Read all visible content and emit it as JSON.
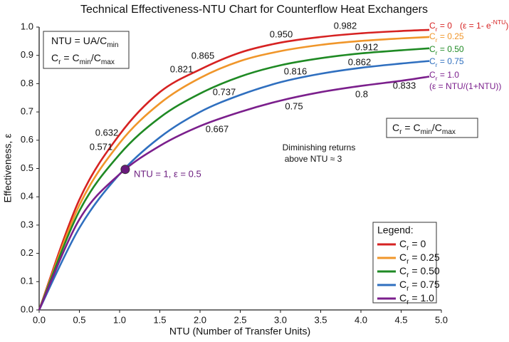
{
  "chart_data": {
    "type": "line",
    "title": "Technical Effectiveness-NTU Chart for Counterflow Heat Exchangers",
    "x_label": "NTU (Number of Transfer Units)",
    "y_label": "Effectiveness, ε",
    "xlim": [
      0,
      5
    ],
    "ylim": [
      0,
      1
    ],
    "xticks": [
      {
        "value": 0,
        "label": "0.0"
      },
      0.5,
      {
        "value": 1,
        "label": "1.0"
      },
      1.5,
      {
        "value": 2,
        "label": "2.0"
      },
      2.5,
      {
        "value": 3,
        "label": "3.0"
      },
      3.5,
      {
        "value": 4,
        "label": "4.0"
      },
      4.5,
      {
        "value": 5,
        "label": "5.0"
      }
    ],
    "yticks": [
      {
        "value": 0,
        "label": "0.0"
      },
      0.1,
      0.2,
      0.3,
      0.4,
      0.5,
      0.6,
      0.7,
      0.8,
      0.9,
      {
        "value": 1,
        "label": "1.0"
      }
    ],
    "grid": false,
    "x": [
      0,
      0.5,
      1,
      1.5,
      2,
      2.5,
      3,
      3.5,
      4,
      4.5,
      4.85
    ],
    "series": [
      {
        "name": [
          "C",
          {
            "sub": "r"
          },
          " = 0"
        ],
        "note": [
          "(ε = 1- e",
          {
            "sup": "-NTU"
          },
          ")"
        ],
        "color": "#d62222",
        "values": [
          0,
          0.39,
          0.62,
          0.77,
          0.85,
          0.91,
          0.945,
          0.965,
          0.978,
          0.986,
          0.99
        ]
      },
      {
        "name": [
          "C",
          {
            "sub": "r"
          },
          " = 0.25"
        ],
        "color": "#f0962a",
        "values": [
          0,
          0.37,
          0.59,
          0.73,
          0.82,
          0.88,
          0.915,
          0.937,
          0.951,
          0.96,
          0.965
        ]
      },
      {
        "name": [
          "C",
          {
            "sub": "r"
          },
          " = 0.50"
        ],
        "color": "#1f8a24",
        "values": [
          0,
          0.35,
          0.55,
          0.68,
          0.765,
          0.825,
          0.865,
          0.89,
          0.907,
          0.918,
          0.925
        ]
      },
      {
        "name": [
          "C",
          {
            "sub": "r"
          },
          " = 0.75"
        ],
        "color": "#2f6fbf",
        "values": [
          0,
          0.29,
          0.48,
          0.61,
          0.7,
          0.76,
          0.805,
          0.835,
          0.856,
          0.871,
          0.88
        ]
      },
      {
        "name": [
          "C",
          {
            "sub": "r"
          },
          " = 1.0"
        ],
        "note": [
          "(ε = NTU/(1+NTU))"
        ],
        "color": "#7b1f8c",
        "values": [
          0,
          0.32,
          0.48,
          0.58,
          0.65,
          0.7,
          0.74,
          0.77,
          0.792,
          0.81,
          0.825
        ]
      }
    ],
    "highlight": {
      "x": 1.07,
      "y": 0.497,
      "color": "#6a1a7d"
    },
    "annotations": [
      "0.982",
      "0.950",
      "0.865",
      "0.821",
      "0.912",
      "0.862",
      "0.816",
      "0.737",
      "0.8",
      "0.833",
      "0.75",
      "0.667",
      "0.632",
      "0.571",
      "NTU = 1, ε = 0.5",
      "Diminishing returns",
      "above NTU ≈ 3"
    ],
    "formula_box": [
      [
        "NTU = UA/C",
        {
          "sub": "min"
        }
      ],
      [
        "C",
        {
          "sub": "r"
        },
        " = C",
        {
          "sub": "min"
        },
        "/C",
        {
          "sub": "max"
        }
      ]
    ],
    "ratio_box": [
      "C",
      {
        "sub": "r"
      },
      " = C",
      {
        "sub": "min"
      },
      "/C",
      {
        "sub": "max"
      }
    ],
    "legend_title": "Legend:",
    "legend": "lower right"
  }
}
